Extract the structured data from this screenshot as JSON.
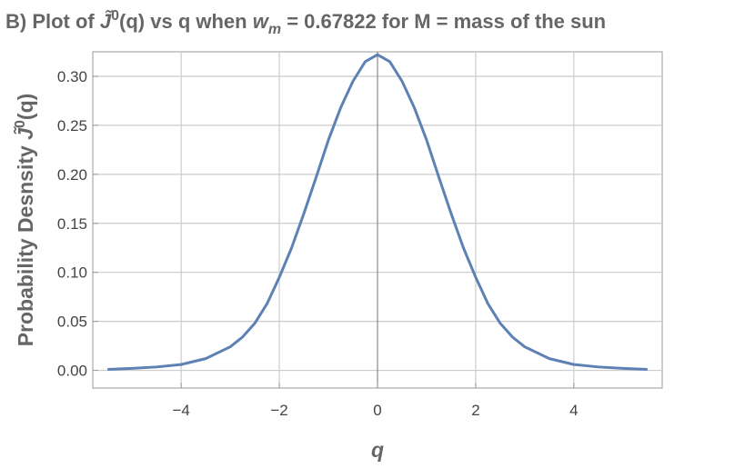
{
  "chart_data": {
    "type": "line",
    "title": [
      "B) Plot of ",
      "J̃",
      "0",
      "(q) vs q when ",
      "w",
      "m",
      " = 0.67822 for M = mass of the sun"
    ],
    "y_label": [
      "Probability  Desnsity ",
      "J̃",
      "0",
      "(q)"
    ],
    "x_label": "q",
    "x": [
      -5.5,
      -5,
      -4.5,
      -4,
      -3.5,
      -3,
      -2.75,
      -2.5,
      -2.25,
      -2,
      -1.75,
      -1.5,
      -1.25,
      -1,
      -0.75,
      -0.5,
      -0.25,
      0,
      0.25,
      0.5,
      0.75,
      1,
      1.25,
      1.5,
      1.75,
      2,
      2.25,
      2.5,
      2.75,
      3,
      3.5,
      4,
      4.5,
      5,
      5.5
    ],
    "series": [
      {
        "color": "#5e81b5",
        "values": [
          0.001,
          0.002,
          0.0035,
          0.006,
          0.012,
          0.024,
          0.034,
          0.048,
          0.068,
          0.095,
          0.125,
          0.16,
          0.197,
          0.235,
          0.268,
          0.295,
          0.315,
          0.322,
          0.315,
          0.295,
          0.268,
          0.235,
          0.197,
          0.16,
          0.125,
          0.095,
          0.068,
          0.048,
          0.034,
          0.024,
          0.012,
          0.006,
          0.0035,
          0.002,
          0.001
        ]
      }
    ],
    "xlim": [
      -5.8,
      5.8
    ],
    "ylim": [
      -0.018,
      0.325
    ],
    "xticks": [
      {
        "value": -4,
        "label": "−4"
      },
      {
        "value": -2,
        "label": "−2"
      },
      0,
      2,
      4
    ],
    "yticks": [
      {
        "value": 0,
        "label": "0.00"
      },
      {
        "value": 0.05,
        "label": "0.05"
      },
      {
        "value": 0.1,
        "label": "0.10"
      },
      {
        "value": 0.15,
        "label": "0.15"
      },
      {
        "value": 0.2,
        "label": "0.20"
      },
      {
        "value": 0.25,
        "label": "0.25"
      },
      {
        "value": 0.3,
        "label": "0.30"
      }
    ],
    "grid": true
  }
}
